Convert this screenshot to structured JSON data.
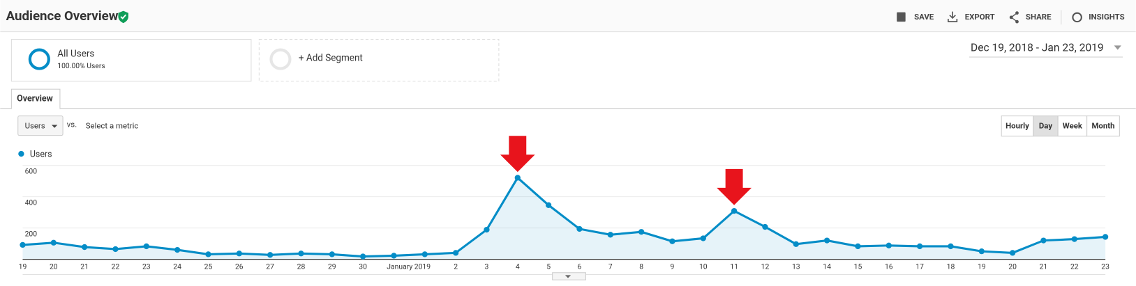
{
  "header": {
    "title": "Audience Overview",
    "actions": [
      "SAVE",
      "EXPORT",
      "SHARE",
      "INSIGHTS"
    ]
  },
  "segments": {
    "active": {
      "name": "All Users",
      "detail": "100.00% Users"
    },
    "add": "+ Add Segment"
  },
  "date_range": "Dec 19, 2018 - Jan 23, 2019",
  "tab": "Overview",
  "controls": {
    "metric": "Users",
    "vs": "vs.",
    "select_metric": "Select a metric",
    "granularity": [
      "Hourly",
      "Day",
      "Week",
      "Month"
    ],
    "selected": "Day"
  },
  "chart_data": {
    "type": "line",
    "categories": [
      "19",
      "20",
      "21",
      "22",
      "23",
      "24",
      "25",
      "26",
      "27",
      "28",
      "29",
      "30",
      null,
      "January 2019",
      "2",
      "3",
      "4",
      "5",
      "6",
      "7",
      "8",
      "9",
      "10",
      "11",
      "12",
      "13",
      "14",
      "15",
      "16",
      "17",
      "18",
      "19",
      "20",
      "21",
      "22",
      "23"
    ],
    "series": [
      {
        "name": "Users",
        "color": "#058dc7",
        "values": [
          92,
          106,
          78,
          65,
          83,
          60,
          32,
          37,
          28,
          37,
          32,
          18,
          23,
          32,
          41,
          189,
          521,
          346,
          194,
          157,
          175,
          115,
          134,
          309,
          207,
          97,
          120,
          83,
          88,
          83,
          83,
          51,
          41,
          120,
          129,
          143
        ]
      }
    ],
    "ylim": [
      0,
      600
    ],
    "yticks": [
      200,
      400,
      600
    ],
    "grid": true,
    "area": true
  }
}
